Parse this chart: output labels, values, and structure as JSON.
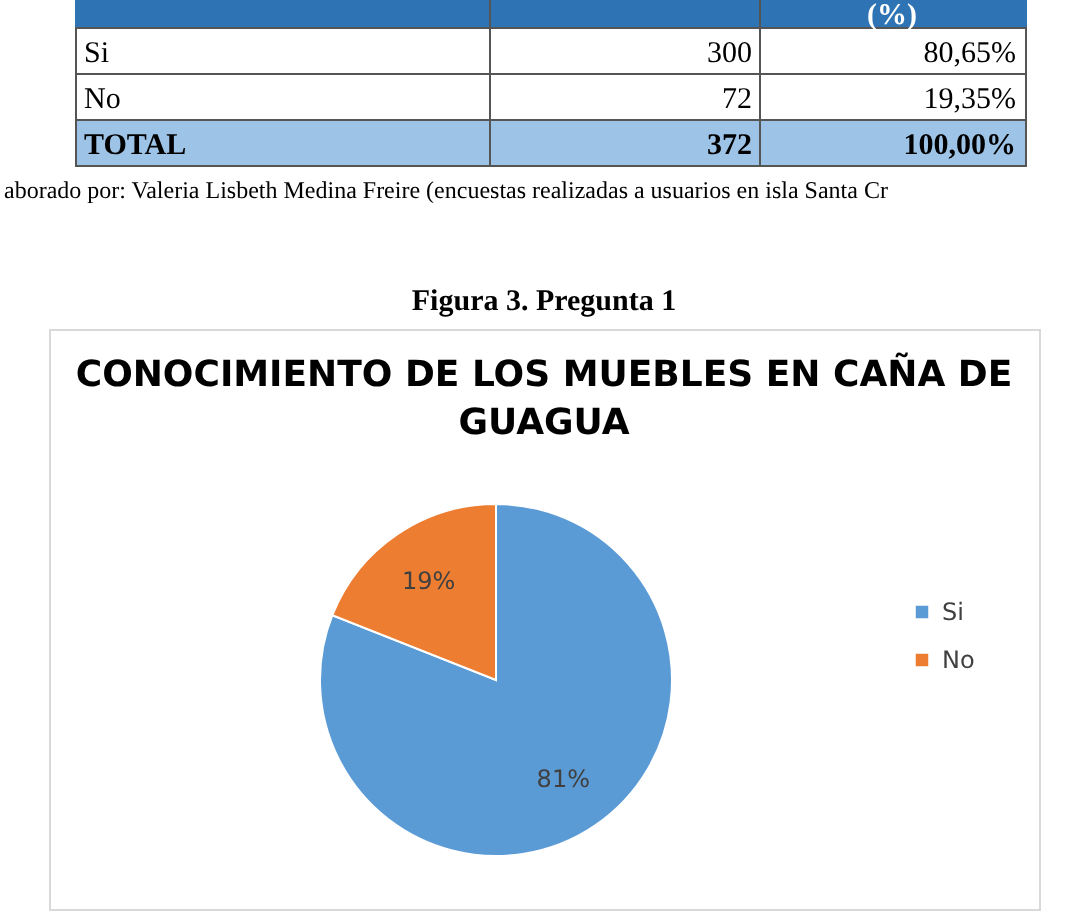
{
  "chart_data": {
    "type": "pie",
    "title": "CONOCIMIENTO DE LOS MUEBLES EN CAÑA DE GUAGUA",
    "categories": [
      "Si",
      "No"
    ],
    "values": [
      81,
      19
    ],
    "colors": [
      "#5b9bd5",
      "#ed7d31"
    ],
    "value_labels": [
      "81%",
      "19%"
    ],
    "legend": "right",
    "annotations": [
      "(%)",
      "Si",
      "300",
      "80,65%",
      "No",
      "72",
      "19,35%",
      "TOTAL",
      "372",
      "100,00%",
      "aborado por: Valeria Lisbeth Medina Freire (encuestas realizadas a usuarios en isla Santa Cr",
      "Figura 3. Pregunta 1"
    ]
  }
}
